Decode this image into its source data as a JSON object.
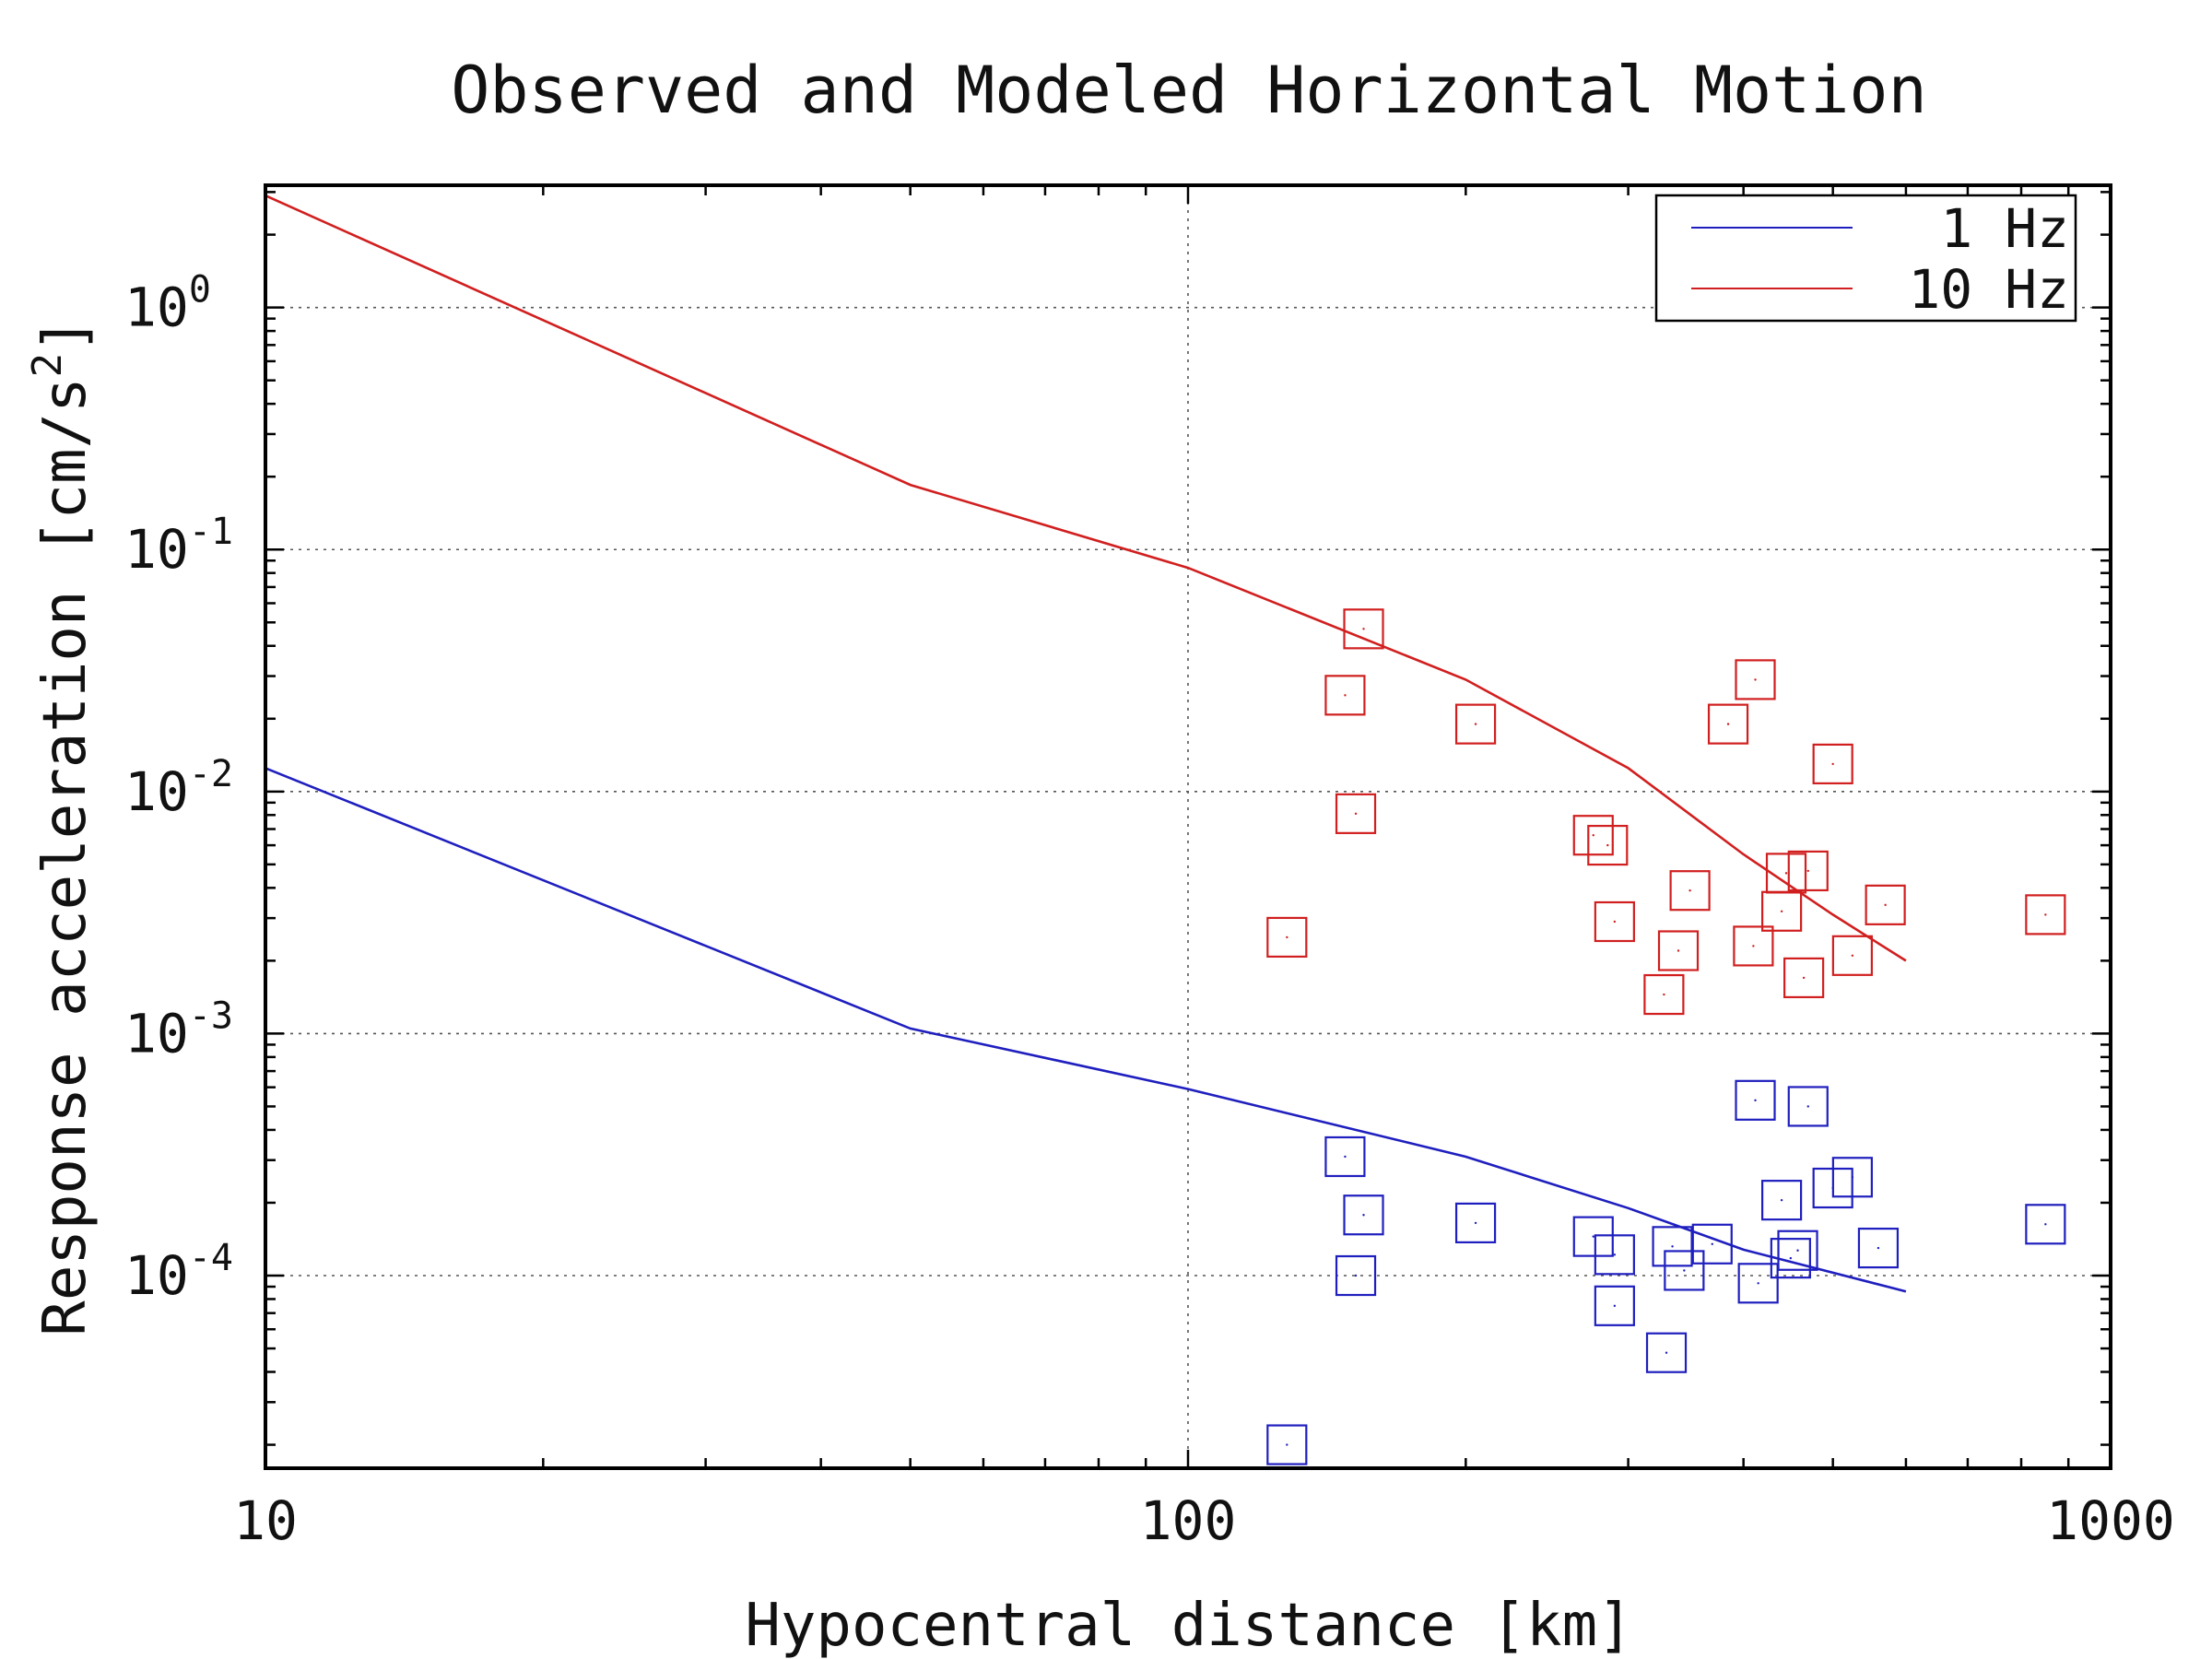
{
  "chart_data": {
    "type": "line",
    "title": "Observed and Modeled Horizontal Motion",
    "xlabel": "Hypocentral distance [km]",
    "ylabel": "Response acceleration [cm/s",
    "ylabel_sup": "2",
    "ylabel_end": "]",
    "x_scale": "log",
    "y_scale": "log",
    "xlim": [
      10,
      1000
    ],
    "ylim": [
      1.6e-05,
      3.2
    ],
    "grid": true,
    "legend_position": "top-right",
    "x_ticks": [
      {
        "value": 10,
        "label": "10"
      },
      {
        "value": 100,
        "label": "100"
      },
      {
        "value": 1000,
        "label": "1000"
      }
    ],
    "y_ticks": [
      {
        "value": 1,
        "base": "10",
        "exp": "0"
      },
      {
        "value": 0.1,
        "base": "10",
        "exp": "-1"
      },
      {
        "value": 0.01,
        "base": "10",
        "exp": "-2"
      },
      {
        "value": 0.001,
        "base": "10",
        "exp": "-3"
      },
      {
        "value": 0.0001,
        "base": "10",
        "exp": "-4"
      }
    ],
    "series": [
      {
        "name": "1 Hz",
        "color": "#1f1fbf",
        "model": [
          [
            10,
            0.0125
          ],
          [
            50,
            0.00105
          ],
          [
            100,
            0.00059
          ],
          [
            200,
            0.00031
          ],
          [
            300,
            0.00019
          ],
          [
            400,
            0.000128
          ],
          [
            600,
            8.6e-05
          ]
        ],
        "observed": [
          [
            128,
            2e-05
          ],
          [
            148,
            0.00031
          ],
          [
            152,
            0.0001
          ],
          [
            155,
            0.000178
          ],
          [
            205,
            0.000165
          ],
          [
            275,
            0.000145
          ],
          [
            290,
            0.000122
          ],
          [
            290,
            7.5e-05
          ],
          [
            330,
            4.8e-05
          ],
          [
            335,
            0.000132
          ],
          [
            345,
            0.000105
          ],
          [
            370,
            0.000135
          ],
          [
            412,
            0.00053
          ],
          [
            415,
            9.3e-05
          ],
          [
            440,
            0.000205
          ],
          [
            450,
            0.000118
          ],
          [
            458,
            0.000127
          ],
          [
            470,
            0.0005
          ],
          [
            500,
            0.00023
          ],
          [
            525,
            0.000255
          ],
          [
            560,
            0.00013
          ],
          [
            850,
            0.000163
          ]
        ]
      },
      {
        "name": "10 Hz",
        "color": "#d11f1f",
        "model": [
          [
            10,
            2.9
          ],
          [
            50,
            0.185
          ],
          [
            100,
            0.084
          ],
          [
            200,
            0.029
          ],
          [
            300,
            0.0125
          ],
          [
            400,
            0.0055
          ],
          [
            500,
            0.0031
          ],
          [
            600,
            0.002
          ]
        ],
        "observed": [
          [
            128,
            0.0025
          ],
          [
            148,
            0.025
          ],
          [
            152,
            0.0081
          ],
          [
            155,
            0.047
          ],
          [
            205,
            0.019
          ],
          [
            275,
            0.0066
          ],
          [
            285,
            0.006
          ],
          [
            290,
            0.0029
          ],
          [
            328,
            0.00145
          ],
          [
            340,
            0.0022
          ],
          [
            350,
            0.0039
          ],
          [
            385,
            0.019
          ],
          [
            410,
            0.0023
          ],
          [
            412,
            0.029
          ],
          [
            440,
            0.0032
          ],
          [
            445,
            0.0046
          ],
          [
            465,
            0.0017
          ],
          [
            470,
            0.0047
          ],
          [
            500,
            0.013
          ],
          [
            525,
            0.0021
          ],
          [
            570,
            0.0034
          ],
          [
            850,
            0.0031
          ]
        ]
      }
    ]
  }
}
